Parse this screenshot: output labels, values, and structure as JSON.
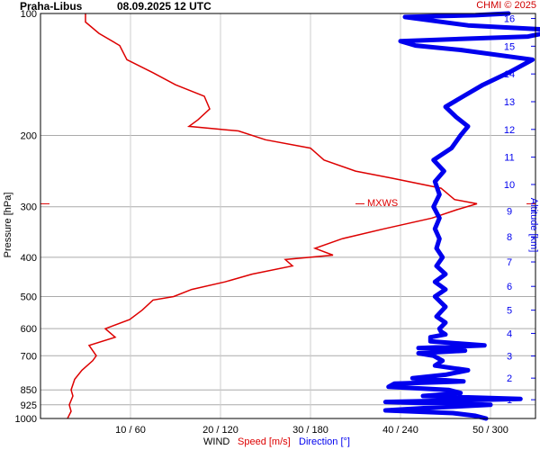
{
  "header": {
    "station": "Praha-Libus",
    "datetime": "08.09.2025 12 UTC",
    "credit": "CHMI © 2025"
  },
  "footer": {
    "wind": "WIND",
    "speed": "Speed [m/s]",
    "direction": "Direction [°]"
  },
  "colors": {
    "speed": "#dd0000",
    "direction": "#0000ee",
    "grid": "#aaaaaa",
    "axis": "#000000"
  },
  "chart_data": {
    "type": "line",
    "y_axis": {
      "label": "Pressure [hPa]",
      "scale": "log",
      "ticks": [
        100,
        200,
        300,
        400,
        500,
        600,
        700,
        850,
        925,
        1000
      ],
      "ylim": [
        1000,
        100
      ]
    },
    "y2_axis": {
      "label": "Altitude [km]",
      "ticks": [
        1,
        2,
        3,
        4,
        5,
        6,
        7,
        8,
        9,
        10,
        11,
        12,
        13,
        14,
        15,
        16
      ]
    },
    "x_axis": {
      "tick_labels": [
        "10 / 60",
        "20 / 120",
        "30 / 180",
        "40 / 240",
        "50 / 300"
      ],
      "speed_range": [
        0,
        55
      ],
      "direction_range": [
        0,
        330
      ]
    },
    "annotation": {
      "text": "MXWS",
      "pressure": 295
    },
    "series": [
      {
        "name": "Speed [m/s]",
        "unit": "m/s",
        "points": [
          [
            1000,
            3
          ],
          [
            960,
            3.4
          ],
          [
            925,
            3.2
          ],
          [
            880,
            3.6
          ],
          [
            850,
            3.4
          ],
          [
            800,
            3.8
          ],
          [
            760,
            4.6
          ],
          [
            720,
            5.8
          ],
          [
            700,
            6.2
          ],
          [
            660,
            5.4
          ],
          [
            630,
            8.3
          ],
          [
            600,
            7.2
          ],
          [
            570,
            9.9
          ],
          [
            540,
            11.3
          ],
          [
            510,
            12.5
          ],
          [
            500,
            14.8
          ],
          [
            480,
            16.8
          ],
          [
            460,
            20.5
          ],
          [
            440,
            23.5
          ],
          [
            420,
            28
          ],
          [
            405,
            27.2
          ],
          [
            395,
            32.5
          ],
          [
            380,
            30.5
          ],
          [
            360,
            33.5
          ],
          [
            340,
            38.2
          ],
          [
            320,
            43.5
          ],
          [
            305,
            46.3
          ],
          [
            295,
            48.5
          ],
          [
            288,
            46
          ],
          [
            270,
            44.5
          ],
          [
            255,
            39
          ],
          [
            245,
            35
          ],
          [
            230,
            31.5
          ],
          [
            215,
            30
          ],
          [
            205,
            25
          ],
          [
            195,
            22
          ],
          [
            190,
            16.5
          ],
          [
            183,
            17.5
          ],
          [
            172,
            18.8
          ],
          [
            160,
            18.2
          ],
          [
            150,
            15
          ],
          [
            140,
            12.5
          ],
          [
            130,
            9.6
          ],
          [
            120,
            8.8
          ],
          [
            112,
            6.5
          ],
          [
            105,
            5
          ],
          [
            100,
            5
          ]
        ]
      },
      {
        "name": "Direction [°]",
        "unit": "°",
        "points": [
          [
            1000,
            297
          ],
          [
            985,
            290
          ],
          [
            970,
            275
          ],
          [
            955,
            230
          ],
          [
            940,
            262
          ],
          [
            925,
            300
          ],
          [
            910,
            230
          ],
          [
            895,
            320
          ],
          [
            880,
            255
          ],
          [
            865,
            280
          ],
          [
            850,
            272
          ],
          [
            835,
            232
          ],
          [
            820,
            236
          ],
          [
            810,
            282
          ],
          [
            795,
            248
          ],
          [
            780,
            270
          ],
          [
            760,
            285
          ],
          [
            740,
            263
          ],
          [
            720,
            268
          ],
          [
            700,
            262
          ],
          [
            690,
            252
          ],
          [
            680,
            283
          ],
          [
            670,
            252
          ],
          [
            660,
            296
          ],
          [
            645,
            260
          ],
          [
            630,
            260
          ],
          [
            620,
            270
          ],
          [
            610,
            267
          ],
          [
            600,
            266
          ],
          [
            580,
            270
          ],
          [
            560,
            264
          ],
          [
            530,
            270
          ],
          [
            500,
            263
          ],
          [
            480,
            270
          ],
          [
            460,
            263
          ],
          [
            440,
            270
          ],
          [
            420,
            264
          ],
          [
            400,
            268
          ],
          [
            380,
            264
          ],
          [
            360,
            266
          ],
          [
            340,
            263
          ],
          [
            320,
            266
          ],
          [
            300,
            262
          ],
          [
            280,
            266
          ],
          [
            260,
            263
          ],
          [
            245,
            269
          ],
          [
            230,
            262
          ],
          [
            215,
            274
          ],
          [
            200,
            280
          ],
          [
            190,
            285
          ],
          [
            180,
            277
          ],
          [
            170,
            270
          ],
          [
            160,
            282
          ],
          [
            150,
            295
          ],
          [
            140,
            312
          ],
          [
            130,
            328
          ],
          [
            123,
            280
          ],
          [
            120,
            250
          ],
          [
            117,
            240
          ],
          [
            114,
            325
          ],
          [
            110,
            345
          ],
          [
            107,
            285
          ],
          [
            104,
            260
          ],
          [
            102,
            243
          ],
          [
            101,
            290
          ],
          [
            100,
            312
          ]
        ]
      }
    ]
  }
}
